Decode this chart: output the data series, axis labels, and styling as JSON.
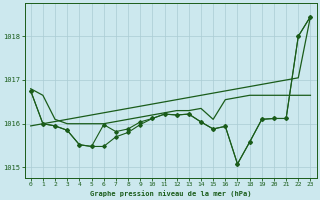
{
  "background_color": "#cce8ee",
  "grid_color": "#aaccd4",
  "line_color": "#1a5c1a",
  "title": "Graphe pression niveau de la mer (hPa)",
  "ylim": [
    1014.75,
    1018.75
  ],
  "yticks": [
    1015,
    1016,
    1017,
    1018
  ],
  "xlim": [
    -0.5,
    23.5
  ],
  "xticks": [
    0,
    1,
    2,
    3,
    4,
    5,
    6,
    7,
    8,
    9,
    10,
    11,
    12,
    13,
    14,
    15,
    16,
    17,
    18,
    19,
    20,
    21,
    22,
    23
  ],
  "s_diag": [
    1015.95,
    1016.0,
    1016.05,
    1016.1,
    1016.15,
    1016.2,
    1016.25,
    1016.3,
    1016.35,
    1016.4,
    1016.45,
    1016.5,
    1016.55,
    1016.6,
    1016.65,
    1016.7,
    1016.75,
    1016.8,
    1016.85,
    1016.9,
    1016.95,
    1017.0,
    1017.05,
    1018.45
  ],
  "s_smooth": [
    1016.8,
    1016.65,
    1016.1,
    1016.0,
    1016.0,
    1016.0,
    1016.0,
    1016.05,
    1016.1,
    1016.15,
    1016.2,
    1016.25,
    1016.3,
    1016.3,
    1016.35,
    1016.1,
    1016.55,
    1016.6,
    1016.65,
    1016.65,
    1016.65,
    1016.65,
    1016.65,
    1016.65
  ],
  "s_zz1": [
    1016.75,
    1016.0,
    1015.95,
    1015.85,
    1015.52,
    1015.48,
    1015.98,
    1015.82,
    1015.88,
    1016.04,
    1016.12,
    1016.22,
    1016.2,
    1016.22,
    1016.04,
    1015.88,
    1015.94,
    1015.08,
    1015.58,
    1016.1,
    1016.12,
    1016.12,
    1018.0,
    1018.45
  ],
  "s_zz2": [
    1016.75,
    1016.0,
    1015.95,
    1015.85,
    1015.52,
    1015.48,
    1015.48,
    1015.7,
    1015.8,
    1015.98,
    1016.12,
    1016.22,
    1016.2,
    1016.22,
    1016.04,
    1015.88,
    1015.94,
    1015.08,
    1015.58,
    1016.1,
    1016.12,
    1016.12,
    1018.0,
    1018.45
  ]
}
